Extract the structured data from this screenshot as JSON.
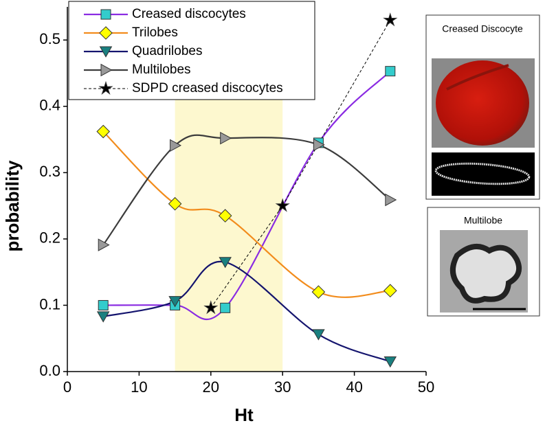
{
  "chart_data": {
    "type": "scatter",
    "x_label": "Ht",
    "y_label": "probability",
    "xlim": [
      0,
      50
    ],
    "xticks": [
      0,
      10,
      20,
      30,
      40,
      50
    ],
    "ylim": [
      0,
      0.55
    ],
    "yticks": [
      {
        "value": 0,
        "label": "0.0"
      },
      0.1,
      0.2,
      0.3,
      0.4,
      0.5
    ],
    "shaded_region": {
      "x": [
        15,
        30
      ],
      "color": "#fdf8cf"
    },
    "legend": "top-left",
    "series": [
      {
        "name": "Creased discocytes",
        "marker": "square",
        "color": "#33cccc",
        "line_color": "#8a2be2",
        "line": "smooth",
        "x": [
          5,
          15,
          22,
          35,
          45
        ],
        "values": [
          0.1,
          0.1,
          0.096,
          0.345,
          0.453
        ]
      },
      {
        "name": "Trilobes",
        "marker": "diamond",
        "color": "#ffff00",
        "line_color": "#f28c1c",
        "line": "smooth",
        "x": [
          5,
          15,
          22,
          35,
          45
        ],
        "values": [
          0.362,
          0.253,
          0.235,
          0.12,
          0.122
        ]
      },
      {
        "name": "Quadrilobes",
        "marker": "triangle-down",
        "color": "#1a8080",
        "line_color": "#14146e",
        "line": "smooth",
        "x": [
          5,
          15,
          22,
          35,
          45
        ],
        "values": [
          0.083,
          0.106,
          0.165,
          0.056,
          0.015
        ]
      },
      {
        "name": "Multilobes",
        "marker": "triangle-right",
        "color": "#999999",
        "line_color": "#3c3c3c",
        "line": "smooth",
        "x": [
          5,
          15,
          22,
          35,
          45
        ],
        "values": [
          0.191,
          0.341,
          0.352,
          0.342,
          0.259
        ]
      },
      {
        "name": "SDPD creased discocytes",
        "marker": "star",
        "color": "#000000",
        "line_color": "#000000",
        "line": "dashed",
        "x": [
          20,
          30,
          45
        ],
        "values": [
          0.096,
          0.25,
          0.53
        ]
      }
    ]
  },
  "panels": [
    {
      "title": "Creased Discocyte"
    },
    {
      "title": "Multilobe"
    }
  ]
}
